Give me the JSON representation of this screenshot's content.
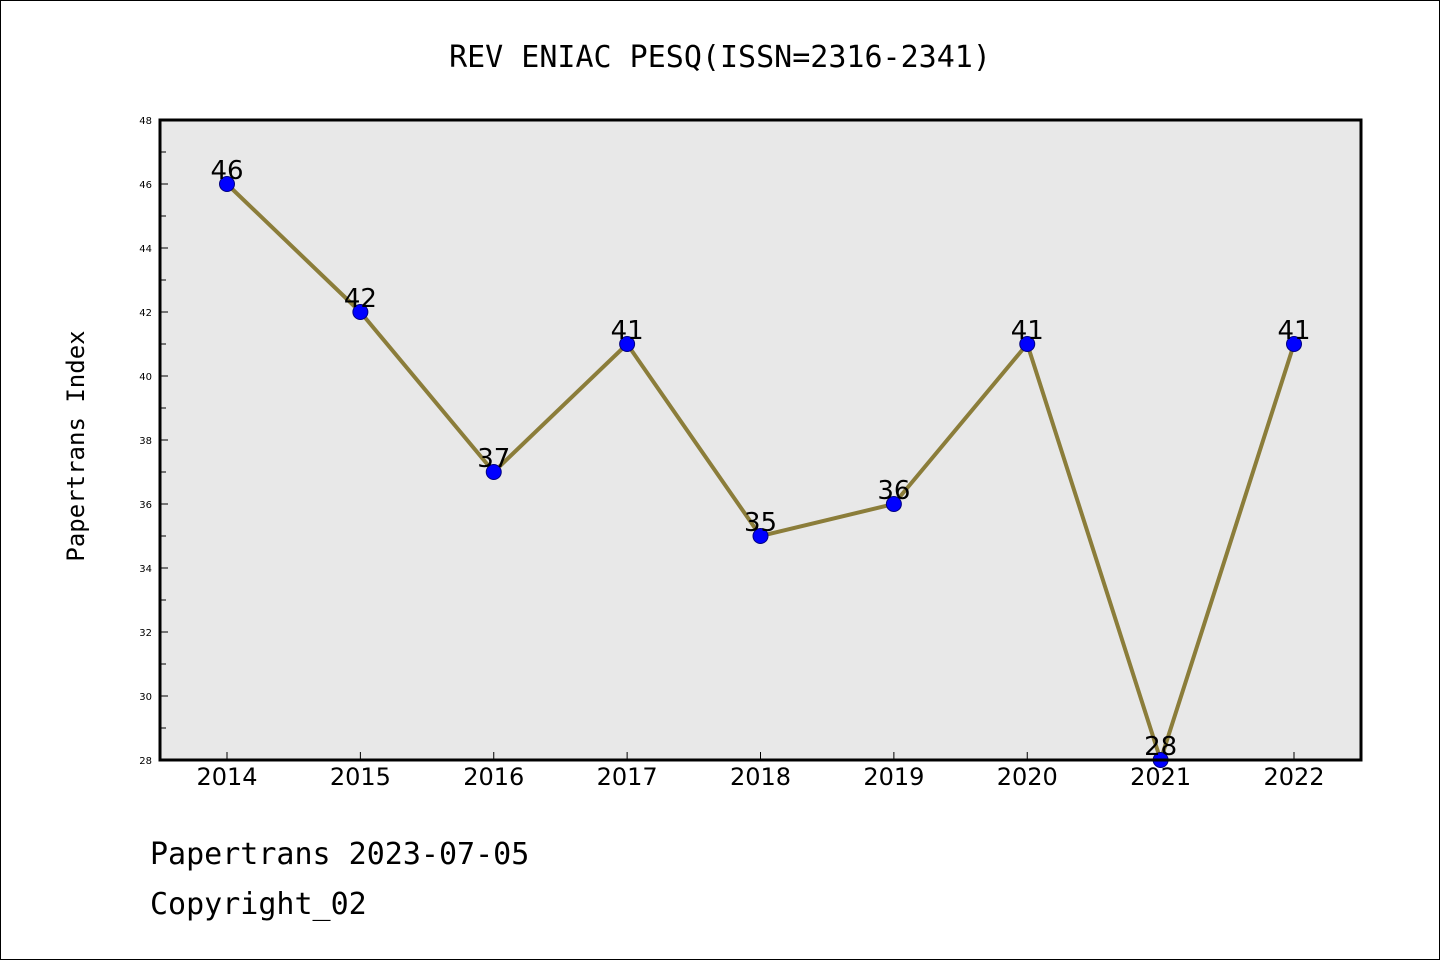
{
  "chart_data": {
    "type": "line",
    "title": "REV ENIAC PESQ(ISSN=2316-2341)",
    "xlabel": "",
    "ylabel": "Papertrans Index",
    "categories": [
      "2014",
      "2015",
      "2016",
      "2017",
      "2018",
      "2019",
      "2020",
      "2021",
      "2022"
    ],
    "series": [
      {
        "values": [
          46,
          42,
          37,
          41,
          35,
          36,
          41,
          28,
          41
        ]
      }
    ],
    "data_labels": [
      "46",
      "42",
      "37",
      "41",
      "35",
      "36",
      "41",
      "28",
      "41"
    ],
    "ylim": [
      28,
      48
    ],
    "yticks": [
      "28",
      "30",
      "32",
      "34",
      "36",
      "38",
      "40",
      "42",
      "44",
      "46",
      "48"
    ],
    "grid": false,
    "legend": "none",
    "colors": {
      "line": "#8b7d3a",
      "marker_fill": "#0000ff",
      "marker_stroke": "#000080",
      "plot_background": "#e8e8e8",
      "frame": "#000000"
    }
  },
  "footer": {
    "line1": "Papertrans 2023-07-05",
    "line2": "Copyright_02"
  }
}
